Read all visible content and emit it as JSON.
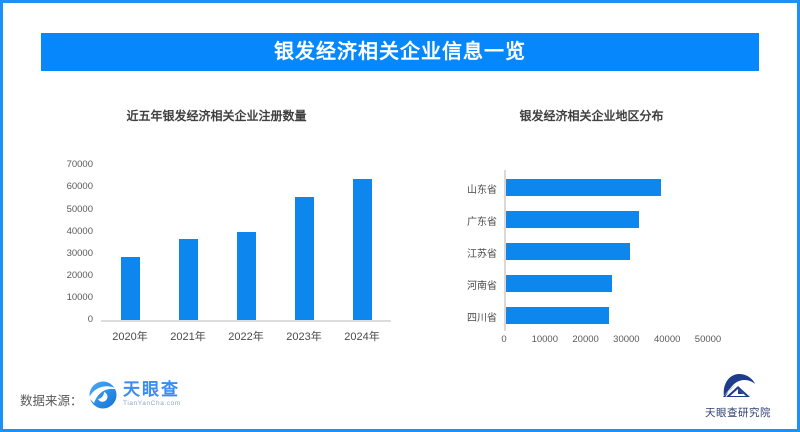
{
  "banner": {
    "title": "银发经济相关企业信息一览"
  },
  "footer": {
    "source_label": "数据来源：",
    "tyc_logo_text": "天眼查",
    "tyc_logo_sub": "TianYanCha.com",
    "institute_label": "天眼查研究院"
  },
  "colors": {
    "banner_bg": "#0787fc",
    "frame_border": "#1b91f7",
    "bar_fill": "#0d87ee",
    "axis_gray": "#d9d9d9",
    "tick_text": "#595959",
    "title_text": "#404040",
    "tyc_blue": "#3a8cf0",
    "institute_navy": "#2c3f6f"
  },
  "chart_data": [
    {
      "type": "bar",
      "title": "近五年银发经济相关企业注册数量",
      "categories": [
        "2020年",
        "2021年",
        "2022年",
        "2023年",
        "2024年"
      ],
      "values": [
        28600,
        36600,
        40000,
        55800,
        64000
      ],
      "xlabel": "",
      "ylabel": "",
      "ylim": [
        0,
        70000
      ],
      "yticks": [
        0,
        10000,
        20000,
        30000,
        40000,
        50000,
        60000,
        70000
      ],
      "grid": false,
      "legend": false,
      "bar_color": "#0d87ee"
    },
    {
      "type": "bar-horizontal",
      "title": "银发经济相关企业地区分布",
      "categories": [
        "山东省",
        "广东省",
        "江苏省",
        "河南省",
        "四川省"
      ],
      "values": [
        38000,
        32700,
        30500,
        26000,
        25300
      ],
      "xlabel": "",
      "ylabel": "",
      "xlim": [
        0,
        50000
      ],
      "xticks": [
        0,
        10000,
        20000,
        30000,
        40000,
        50000
      ],
      "grid": false,
      "legend": false,
      "bar_color": "#0d87ee"
    }
  ]
}
